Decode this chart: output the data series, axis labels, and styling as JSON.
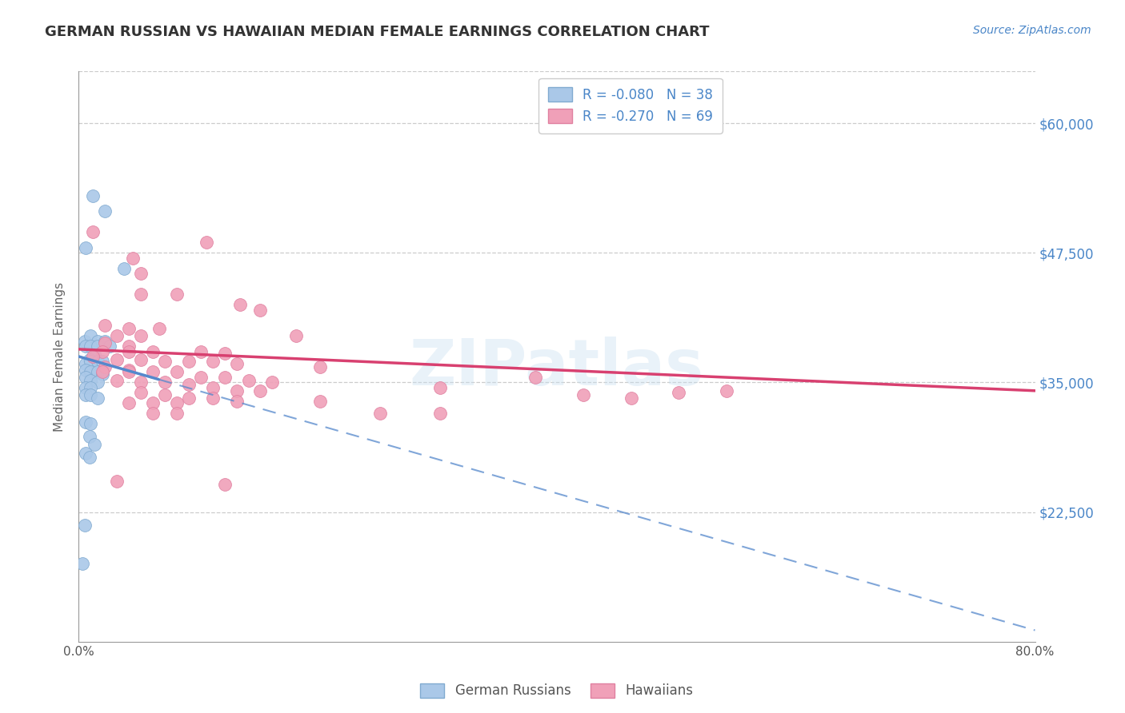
{
  "title": "GERMAN RUSSIAN VS HAWAIIAN MEDIAN FEMALE EARNINGS CORRELATION CHART",
  "source": "Source: ZipAtlas.com",
  "ylabel": "Median Female Earnings",
  "xlim": [
    0.0,
    0.8
  ],
  "ylim": [
    10000,
    65000
  ],
  "yticks": [
    22500,
    35000,
    47500,
    60000
  ],
  "ytick_labels": [
    "$22,500",
    "$35,000",
    "$47,500",
    "$60,000"
  ],
  "xticks": [
    0.0,
    0.1,
    0.2,
    0.3,
    0.4,
    0.5,
    0.6,
    0.7,
    0.8
  ],
  "xtick_labels": [
    "0.0%",
    "",
    "",
    "",
    "",
    "",
    "",
    "",
    "80.0%"
  ],
  "blue_color": "#aac8e8",
  "pink_color": "#f0a0b8",
  "blue_edge": "#80aad0",
  "pink_edge": "#e080a0",
  "blue_line_color": "#5588cc",
  "pink_line_color": "#d84070",
  "blue_scatter": [
    [
      0.012,
      53000
    ],
    [
      0.022,
      51500
    ],
    [
      0.006,
      48000
    ],
    [
      0.038,
      46000
    ],
    [
      0.005,
      39000
    ],
    [
      0.01,
      39500
    ],
    [
      0.016,
      39000
    ],
    [
      0.006,
      38500
    ],
    [
      0.01,
      38500
    ],
    [
      0.016,
      38500
    ],
    [
      0.022,
      39000
    ],
    [
      0.026,
      38500
    ],
    [
      0.014,
      37500
    ],
    [
      0.009,
      37200
    ],
    [
      0.006,
      36800
    ],
    [
      0.01,
      37000
    ],
    [
      0.016,
      37000
    ],
    [
      0.02,
      37000
    ],
    [
      0.006,
      36200
    ],
    [
      0.01,
      36000
    ],
    [
      0.016,
      36000
    ],
    [
      0.02,
      35800
    ],
    [
      0.006,
      35500
    ],
    [
      0.01,
      35200
    ],
    [
      0.016,
      35000
    ],
    [
      0.006,
      34500
    ],
    [
      0.01,
      34500
    ],
    [
      0.006,
      33800
    ],
    [
      0.01,
      33800
    ],
    [
      0.016,
      33500
    ],
    [
      0.006,
      31200
    ],
    [
      0.01,
      31000
    ],
    [
      0.009,
      29800
    ],
    [
      0.013,
      29000
    ],
    [
      0.006,
      28200
    ],
    [
      0.009,
      27800
    ],
    [
      0.005,
      21200
    ],
    [
      0.003,
      17500
    ]
  ],
  "pink_scatter": [
    [
      0.012,
      49500
    ],
    [
      0.107,
      48500
    ],
    [
      0.045,
      47000
    ],
    [
      0.052,
      45500
    ],
    [
      0.082,
      43500
    ],
    [
      0.052,
      43500
    ],
    [
      0.135,
      42500
    ],
    [
      0.152,
      42000
    ],
    [
      0.022,
      40500
    ],
    [
      0.042,
      40200
    ],
    [
      0.067,
      40200
    ],
    [
      0.032,
      39500
    ],
    [
      0.052,
      39500
    ],
    [
      0.182,
      39500
    ],
    [
      0.022,
      38800
    ],
    [
      0.042,
      38500
    ],
    [
      0.02,
      38000
    ],
    [
      0.042,
      38000
    ],
    [
      0.062,
      38000
    ],
    [
      0.102,
      38000
    ],
    [
      0.122,
      37800
    ],
    [
      0.012,
      37500
    ],
    [
      0.032,
      37200
    ],
    [
      0.052,
      37200
    ],
    [
      0.072,
      37000
    ],
    [
      0.092,
      37000
    ],
    [
      0.112,
      37000
    ],
    [
      0.132,
      36800
    ],
    [
      0.202,
      36500
    ],
    [
      0.022,
      36500
    ],
    [
      0.042,
      36200
    ],
    [
      0.02,
      36000
    ],
    [
      0.042,
      36000
    ],
    [
      0.062,
      36000
    ],
    [
      0.082,
      36000
    ],
    [
      0.102,
      35500
    ],
    [
      0.122,
      35500
    ],
    [
      0.142,
      35200
    ],
    [
      0.162,
      35000
    ],
    [
      0.032,
      35200
    ],
    [
      0.052,
      35000
    ],
    [
      0.072,
      35000
    ],
    [
      0.092,
      34800
    ],
    [
      0.112,
      34500
    ],
    [
      0.132,
      34200
    ],
    [
      0.152,
      34200
    ],
    [
      0.302,
      34500
    ],
    [
      0.052,
      34000
    ],
    [
      0.072,
      33800
    ],
    [
      0.092,
      33500
    ],
    [
      0.112,
      33500
    ],
    [
      0.132,
      33200
    ],
    [
      0.202,
      33200
    ],
    [
      0.042,
      33000
    ],
    [
      0.062,
      33000
    ],
    [
      0.082,
      33000
    ],
    [
      0.062,
      32000
    ],
    [
      0.082,
      32000
    ],
    [
      0.302,
      32000
    ],
    [
      0.252,
      32000
    ],
    [
      0.032,
      25500
    ],
    [
      0.122,
      25200
    ],
    [
      0.382,
      35500
    ],
    [
      0.422,
      33800
    ],
    [
      0.462,
      33500
    ],
    [
      0.502,
      34000
    ],
    [
      0.542,
      34200
    ]
  ]
}
